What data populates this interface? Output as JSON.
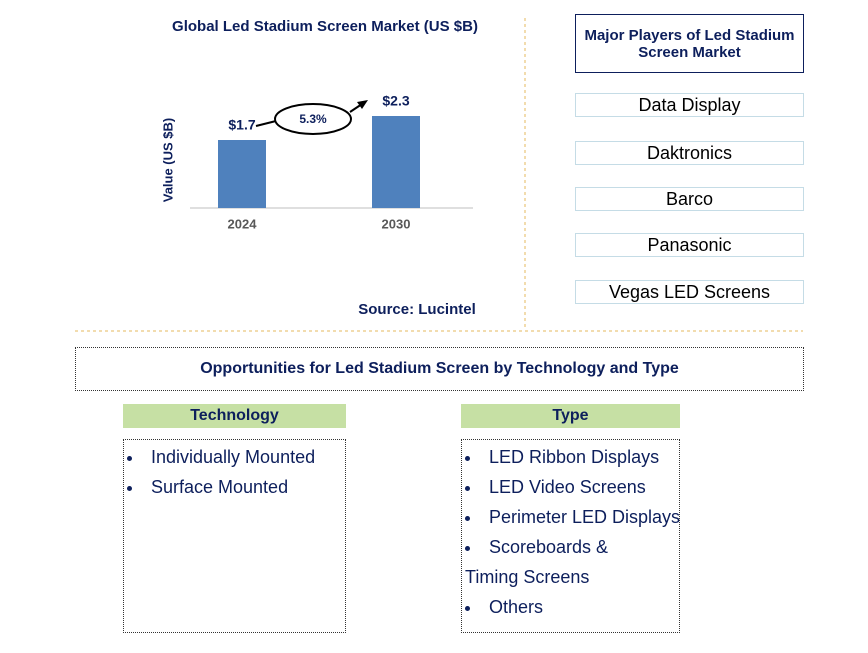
{
  "chart_data": {
    "type": "bar",
    "title": "Global Led Stadium Screen Market (US $B)",
    "y_label": "Value (US $B)",
    "categories": [
      "2024",
      "2030"
    ],
    "values": [
      1.7,
      2.3
    ],
    "value_labels": [
      "$1.7",
      "$2.3"
    ],
    "color": "#4f81bd",
    "ylim": [
      0,
      2.5
    ],
    "annotation": "5.3%",
    "source": "Source: Lucintel"
  },
  "players": {
    "title": "Major Players of Led Stadium Screen Market",
    "items": [
      "Data Display",
      "Daktronics",
      "Barco",
      "Panasonic",
      "Vegas LED Screens"
    ]
  },
  "opportunities": {
    "title": "Opportunities for Led Stadium Screen by Technology and Type",
    "technology": {
      "title": "Technology",
      "items": [
        "Individually Mounted",
        "Surface Mounted"
      ]
    },
    "type": {
      "title": "Type",
      "items": [
        "LED Ribbon Displays",
        "LED Video Screens",
        "Perimeter LED Displays",
        "Scoreboards & Timing Screens",
        "Others"
      ]
    }
  }
}
